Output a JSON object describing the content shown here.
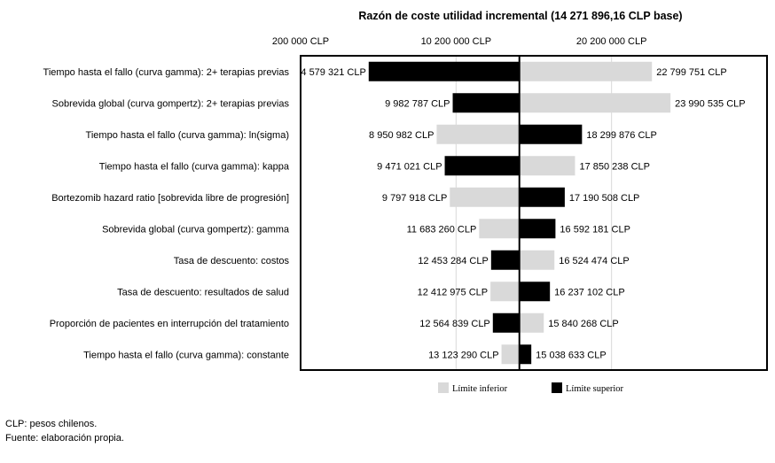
{
  "chart_data": {
    "type": "tornado",
    "title": "Razón de coste utilidad incremental (14 271 896,16 CLP base)",
    "base": 14271896.16,
    "xlim": [
      200000,
      30200000
    ],
    "x_ticks": [
      200000,
      10200000,
      20200000
    ],
    "x_tick_labels": [
      "200 000 CLP",
      "10 200 000 CLP",
      "20 200 000 CLP"
    ],
    "legend": [
      {
        "name": "Límite inferior",
        "color": "#d9d9d9"
      },
      {
        "name": "Límite superior",
        "color": "#000000"
      }
    ],
    "legend_position": "bottom",
    "grid": true,
    "rows": [
      {
        "label": "Tiempo hasta el fallo (curva gamma): 2+ terapias previas",
        "lower_value": 22799751,
        "lower_text": "22 799 751 CLP",
        "upper_value": 4579321,
        "upper_text": "4 579 321 CLP"
      },
      {
        "label": "Sobrevida global (curva gompertz): 2+ terapias previas",
        "lower_value": 23990535,
        "lower_text": "23 990 535 CLP",
        "upper_value": 9982787,
        "upper_text": "9 982 787 CLP"
      },
      {
        "label": "Tiempo hasta el fallo (curva gamma): ln(sigma)",
        "lower_value": 8950982,
        "lower_text": "8 950 982 CLP",
        "upper_value": 18299876,
        "upper_text": "18 299 876 CLP"
      },
      {
        "label": "Tiempo hasta el fallo (curva gamma): kappa",
        "lower_value": 17850238,
        "lower_text": "17 850 238 CLP",
        "upper_value": 9471021,
        "upper_text": "9 471 021 CLP"
      },
      {
        "label": "Bortezomib hazard ratio [sobrevida libre de progresión]",
        "lower_value": 9797918,
        "lower_text": "9 797 918 CLP",
        "upper_value": 17190508,
        "upper_text": "17 190 508 CLP"
      },
      {
        "label": "Sobrevida global (curva gompertz): gamma",
        "lower_value": 11683260,
        "lower_text": "11 683 260 CLP",
        "upper_value": 16592181,
        "upper_text": "16 592 181 CLP"
      },
      {
        "label": "Tasa de descuento: costos",
        "lower_value": 16524474,
        "lower_text": "16 524 474 CLP",
        "upper_value": 12453284,
        "upper_text": "12 453 284 CLP"
      },
      {
        "label": "Tasa de descuento: resultados de salud",
        "lower_value": 12412975,
        "lower_text": "12 412 975 CLP",
        "upper_value": 16237102,
        "upper_text": "16 237 102 CLP"
      },
      {
        "label": "Proporción de pacientes en interrupción del tratamiento",
        "lower_value": 15840268,
        "lower_text": "15 840 268 CLP",
        "upper_value": 12564839,
        "upper_text": "12 564 839 CLP"
      },
      {
        "label": "Tiempo hasta el fallo (curva gamma): constante",
        "lower_value": 13123290,
        "lower_text": "13 123 290 CLP",
        "upper_value": 15038633,
        "upper_text": "15 038 633 CLP"
      }
    ]
  },
  "notes": {
    "line1": "CLP: pesos chilenos.",
    "line2": "Fuente: elaboración propia."
  }
}
